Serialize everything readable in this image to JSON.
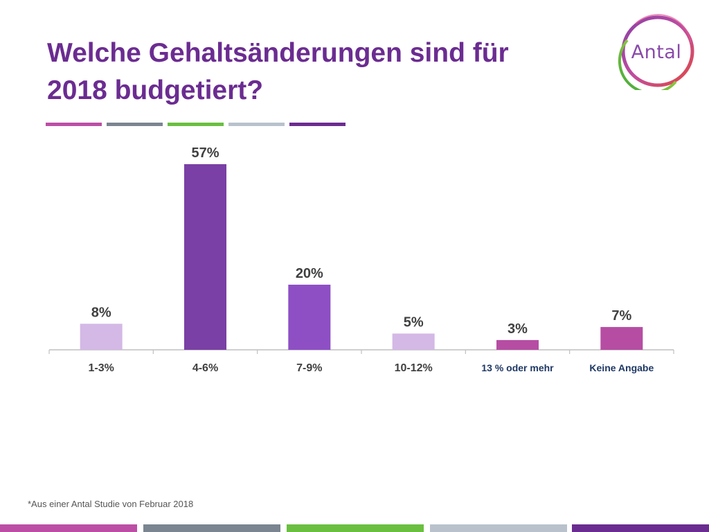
{
  "title": {
    "line1": "Welche Gehaltsänderungen sind für",
    "line2": "2018 budgetiert?"
  },
  "logo": {
    "text": "Antal"
  },
  "footnote": "*Aus einer Antal Studie von Februar 2018",
  "colors": {
    "title": "#6b2c91",
    "stripes": [
      "#bc4fa5",
      "#7b8591",
      "#6abf40",
      "#b9c2cc",
      "#6b2c91"
    ]
  },
  "chart_data": {
    "type": "bar",
    "categories": [
      "1-3%",
      "4-6%",
      "7-9%",
      "10-12%",
      "13 % oder mehr",
      "Keine Angabe"
    ],
    "values": [
      8,
      57,
      20,
      5,
      3,
      7
    ],
    "data_labels": [
      "8%",
      "57%",
      "20%",
      "5%",
      "3%",
      "7%"
    ],
    "bar_colors": [
      "#d4b8e6",
      "#7a40a5",
      "#8e4fc5",
      "#d4b8e6",
      "#b64da3",
      "#b64da3"
    ],
    "title": "",
    "xlabel": "",
    "ylabel": "",
    "ylim": [
      0,
      57
    ],
    "grid": false,
    "legend": "none"
  }
}
